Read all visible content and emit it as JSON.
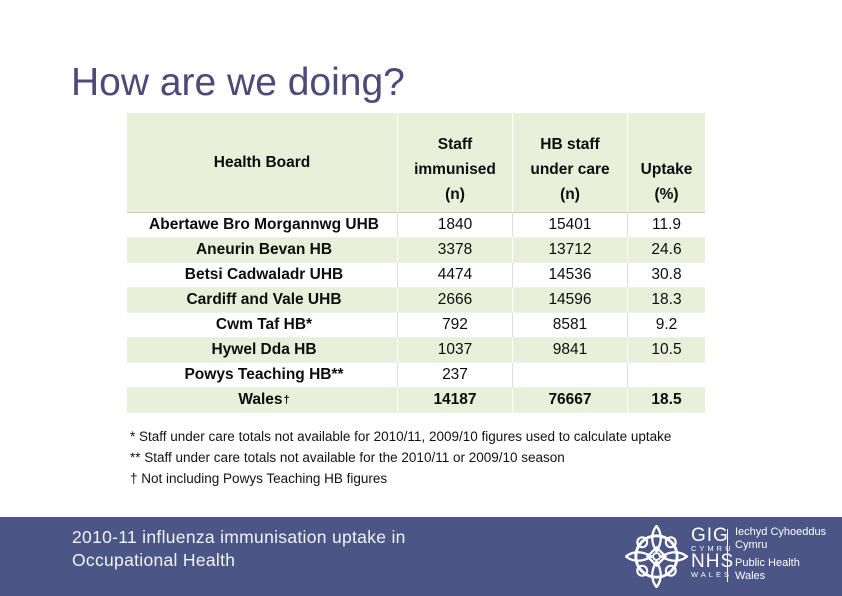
{
  "slide": {
    "title": "How are we doing?",
    "footer": {
      "caption_line1": "2010-11 influenza immunisation uptake in",
      "caption_line2": "Occupational Health"
    },
    "logo": {
      "emblem_icon": "nhs-wales-celtic-knot",
      "gig": "GIG",
      "cymru": "CYMRU",
      "nhs": "NHS",
      "wales": "WALES",
      "right_lines": [
        "Iechyd Cyhoeddus",
        "Cymru",
        "Public Health",
        "Wales"
      ]
    }
  },
  "table": {
    "header": {
      "col1": "Health Board",
      "col2": [
        "Staff",
        "immunised",
        "(n)"
      ],
      "col3": [
        "HB staff",
        "under care",
        "(n)"
      ],
      "col4": [
        "Uptake",
        "",
        "(%)"
      ]
    },
    "rows": [
      {
        "name": "Abertawe Bro Morgannwg UHB",
        "sup": "",
        "staff_immunised": "1840",
        "hb_staff_under_care": "15401",
        "uptake": "11.9",
        "bold": false
      },
      {
        "name": "Aneurin Bevan HB",
        "sup": "",
        "staff_immunised": "3378",
        "hb_staff_under_care": "13712",
        "uptake": "24.6",
        "bold": false
      },
      {
        "name": "Betsi Cadwaladr UHB",
        "sup": "",
        "staff_immunised": "4474",
        "hb_staff_under_care": "14536",
        "uptake": "30.8",
        "bold": false
      },
      {
        "name": "Cardiff and Vale UHB",
        "sup": "",
        "staff_immunised": "2666",
        "hb_staff_under_care": "14596",
        "uptake": "18.3",
        "bold": false
      },
      {
        "name": "Cwm Taf HB*",
        "sup": "",
        "staff_immunised": "792",
        "hb_staff_under_care": "8581",
        "uptake": "9.2",
        "bold": false
      },
      {
        "name": "Hywel Dda HB",
        "sup": "",
        "staff_immunised": "1037",
        "hb_staff_under_care": "9841",
        "uptake": "10.5",
        "bold": false
      },
      {
        "name": "Powys Teaching HB**",
        "sup": "",
        "staff_immunised": "237",
        "hb_staff_under_care": "",
        "uptake": "",
        "bold": false
      },
      {
        "name": "Wales",
        "sup": "†",
        "staff_immunised": "14187",
        "hb_staff_under_care": "76667",
        "uptake": "18.5",
        "bold": true
      }
    ]
  },
  "footnotes": [
    "* Staff under care totals not available for 2010/11, 2009/10 figures used to calculate uptake",
    "** Staff under care totals not available for the 2010/11 or 2009/10 season",
    "† Not including Powys Teaching HB figures"
  ],
  "colors": {
    "title_text": "#4c4a78",
    "table_band_green": "#e9efd9",
    "footer_bar_blue": "#4b5586",
    "logo_white": "#ffffff",
    "body_text": "#0d0d0d"
  }
}
